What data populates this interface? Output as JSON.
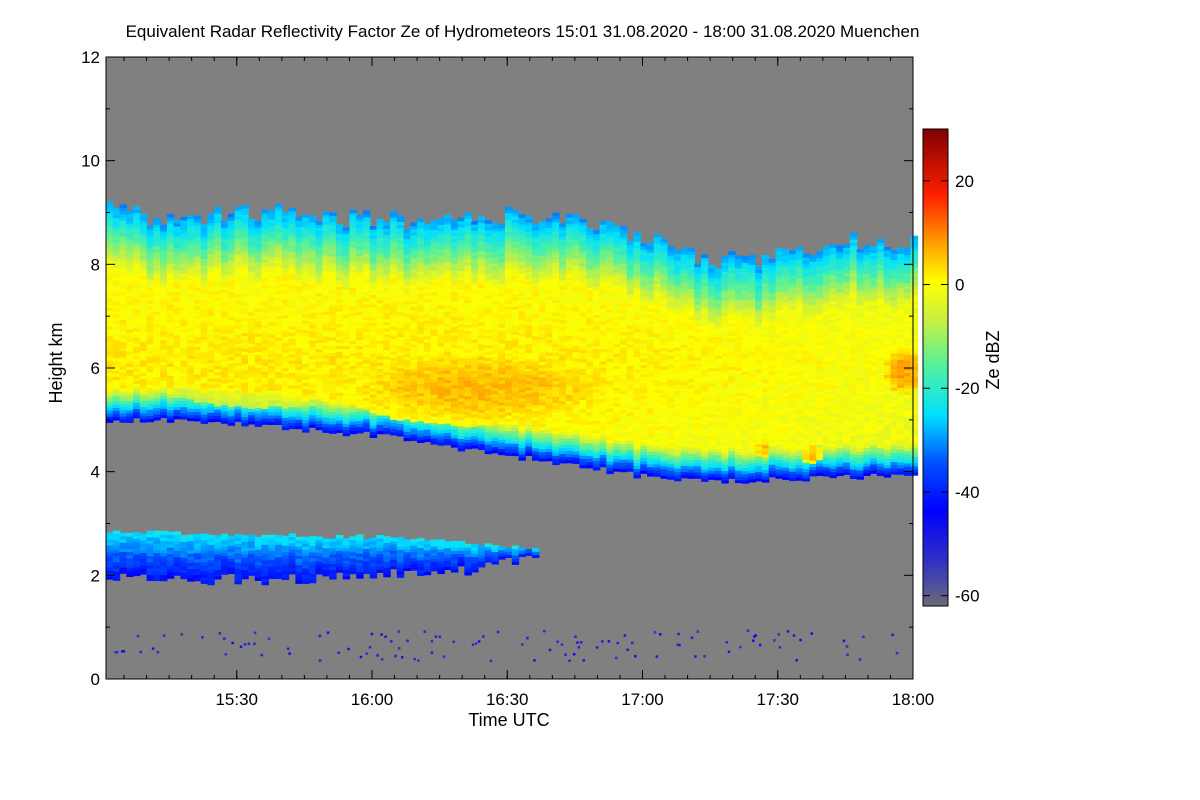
{
  "chart_data": {
    "type": "heatmap",
    "title": "Equivalent Radar Reflectivity Factor Ze of Hydrometeors   15:01 31.08.2020 - 18:00 31.08.2020 Muenchen",
    "xlabel": "Time UTC",
    "ylabel": "Height km",
    "x_range_minutes_utc": [
      901,
      1080
    ],
    "x_ticks": [
      {
        "label": "15:30",
        "minutes": 930
      },
      {
        "label": "16:00",
        "minutes": 960
      },
      {
        "label": "16:30",
        "minutes": 990
      },
      {
        "label": "17:00",
        "minutes": 1020
      },
      {
        "label": "17:30",
        "minutes": 1050
      },
      {
        "label": "18:00",
        "minutes": 1080
      }
    ],
    "ylim": [
      0,
      12
    ],
    "y_ticks": [
      0,
      2,
      4,
      6,
      8,
      10,
      12
    ],
    "colorbar": {
      "label": "Ze dBZ",
      "range": [
        -62,
        30
      ],
      "ticks": [
        -60,
        -40,
        -20,
        0,
        20
      ],
      "no_data_color": "#808080"
    },
    "layers": [
      {
        "name": "upper-cloud",
        "base_km": [
          [
            901,
            5.0
          ],
          [
            915,
            5.0
          ],
          [
            930,
            4.9
          ],
          [
            945,
            4.8
          ],
          [
            960,
            4.7
          ],
          [
            975,
            4.5
          ],
          [
            990,
            4.3
          ],
          [
            1005,
            4.1
          ],
          [
            1020,
            3.9
          ],
          [
            1035,
            3.8
          ],
          [
            1050,
            3.85
          ],
          [
            1065,
            3.9
          ],
          [
            1080,
            3.9
          ]
        ],
        "top_km": [
          [
            901,
            9.0
          ],
          [
            915,
            8.8
          ],
          [
            930,
            9.0
          ],
          [
            945,
            8.9
          ],
          [
            960,
            8.8
          ],
          [
            975,
            8.8
          ],
          [
            990,
            8.9
          ],
          [
            1005,
            8.8
          ],
          [
            1020,
            8.5
          ],
          [
            1035,
            8.0
          ],
          [
            1050,
            8.1
          ],
          [
            1065,
            8.4
          ],
          [
            1080,
            8.4
          ]
        ],
        "core": [
          {
            "center": [
              983,
              5.6
            ],
            "span_minutes": 32,
            "span_km": 0.75,
            "ze_dbz": 6
          },
          {
            "center": [
              935,
              6.1
            ],
            "span_minutes": 30,
            "span_km": 0.9,
            "ze_dbz": -1
          },
          {
            "center": [
              1077,
              5.9
            ],
            "span_minutes": 4,
            "span_km": 0.45,
            "ze_dbz": 8
          },
          {
            "center": [
              1046,
              4.4
            ],
            "span_minutes": 1.5,
            "span_km": 0.2,
            "ze_dbz": 6
          },
          {
            "center": [
              1057,
              4.3
            ],
            "span_minutes": 2,
            "span_km": 0.2,
            "ze_dbz": 6
          }
        ]
      },
      {
        "name": "lower-cloud",
        "start_minutes": 901,
        "end_minutes": 997,
        "base_km": [
          [
            901,
            2.0
          ],
          [
            930,
            1.9
          ],
          [
            960,
            2.0
          ],
          [
            980,
            2.1
          ],
          [
            997,
            2.3
          ]
        ],
        "top_km": [
          [
            901,
            2.8
          ],
          [
            930,
            2.75
          ],
          [
            960,
            2.7
          ],
          [
            980,
            2.6
          ],
          [
            997,
            2.45
          ]
        ],
        "ze_dbz_top": -24,
        "ze_dbz_base": -42
      },
      {
        "name": "near-surface-echoes",
        "height_range_km": [
          0.2,
          1.5
        ],
        "ze_dbz": -50
      }
    ]
  }
}
